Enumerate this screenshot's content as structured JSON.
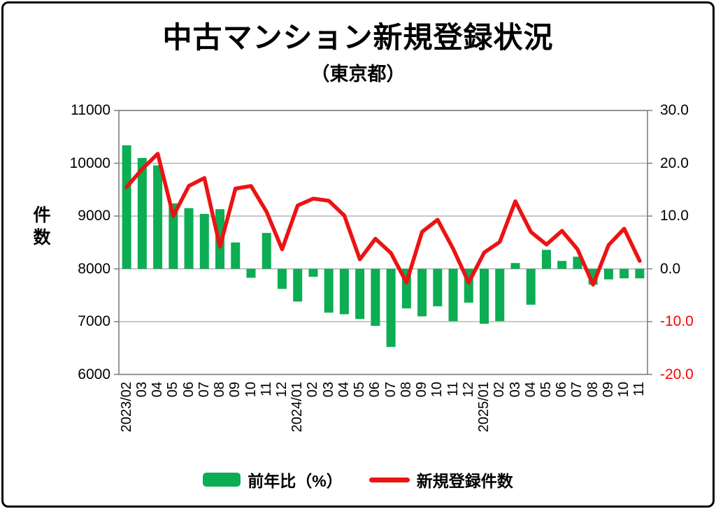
{
  "title": "中古マンション新規登録状況",
  "subtitle": "（東京都）",
  "chart_data": {
    "type": "combo bar+line",
    "categories": [
      "2023/02",
      "03",
      "04",
      "05",
      "06",
      "07",
      "08",
      "09",
      "10",
      "11",
      "12",
      "2024/01",
      "02",
      "03",
      "04",
      "05",
      "06",
      "07",
      "08",
      "09",
      "10",
      "11",
      "12",
      "2025/01",
      "02",
      "03",
      "04",
      "05",
      "06",
      "07",
      "08",
      "09",
      "10",
      "11"
    ],
    "series": [
      {
        "name": "前年比（%）",
        "type": "bar",
        "axis": "right",
        "color": "#0CAD53",
        "values": [
          23.4,
          21.0,
          19.6,
          12.4,
          11.5,
          10.4,
          11.3,
          5.0,
          -1.7,
          6.8,
          -3.8,
          -6.2,
          -1.5,
          -8.3,
          -8.6,
          -9.5,
          -10.8,
          -14.8,
          -7.5,
          -9.0,
          -7.1,
          -9.9,
          -6.4,
          -10.4,
          -9.9,
          1.1,
          -6.8,
          3.6,
          1.5,
          2.3,
          -3.0,
          -2.0,
          -1.8,
          -1.8
        ]
      },
      {
        "name": "新規登録件数",
        "type": "line",
        "axis": "left",
        "color": "#EC1313",
        "values": [
          9550,
          9890,
          10180,
          9000,
          9570,
          9720,
          8420,
          9520,
          9570,
          9080,
          8370,
          9200,
          9330,
          9290,
          9010,
          8180,
          8570,
          8300,
          7740,
          8700,
          8930,
          8380,
          7740,
          8310,
          8510,
          9280,
          8700,
          8460,
          8720,
          8370,
          7700,
          8450,
          8760,
          8150
        ]
      }
    ],
    "left_axis": {
      "label": "件数",
      "min": 6000,
      "max": 11000,
      "tick_step": 1000,
      "ticks": [
        "11000",
        "10000",
        "9000",
        "8000",
        "7000",
        "6000"
      ]
    },
    "right_axis": {
      "min": -20.0,
      "max": 30.0,
      "tick_step": 10,
      "ticks": [
        "30.0",
        "20.0",
        "10.0",
        "0.0",
        "-10.0",
        "-20.0"
      ],
      "negative_tick_color": "#FF0000"
    },
    "bar_baseline_right_axis": 0,
    "grid": true,
    "legend_position": "bottom",
    "grid_color": "#A6A6A6",
    "frame_color": "#7F7F7F"
  }
}
